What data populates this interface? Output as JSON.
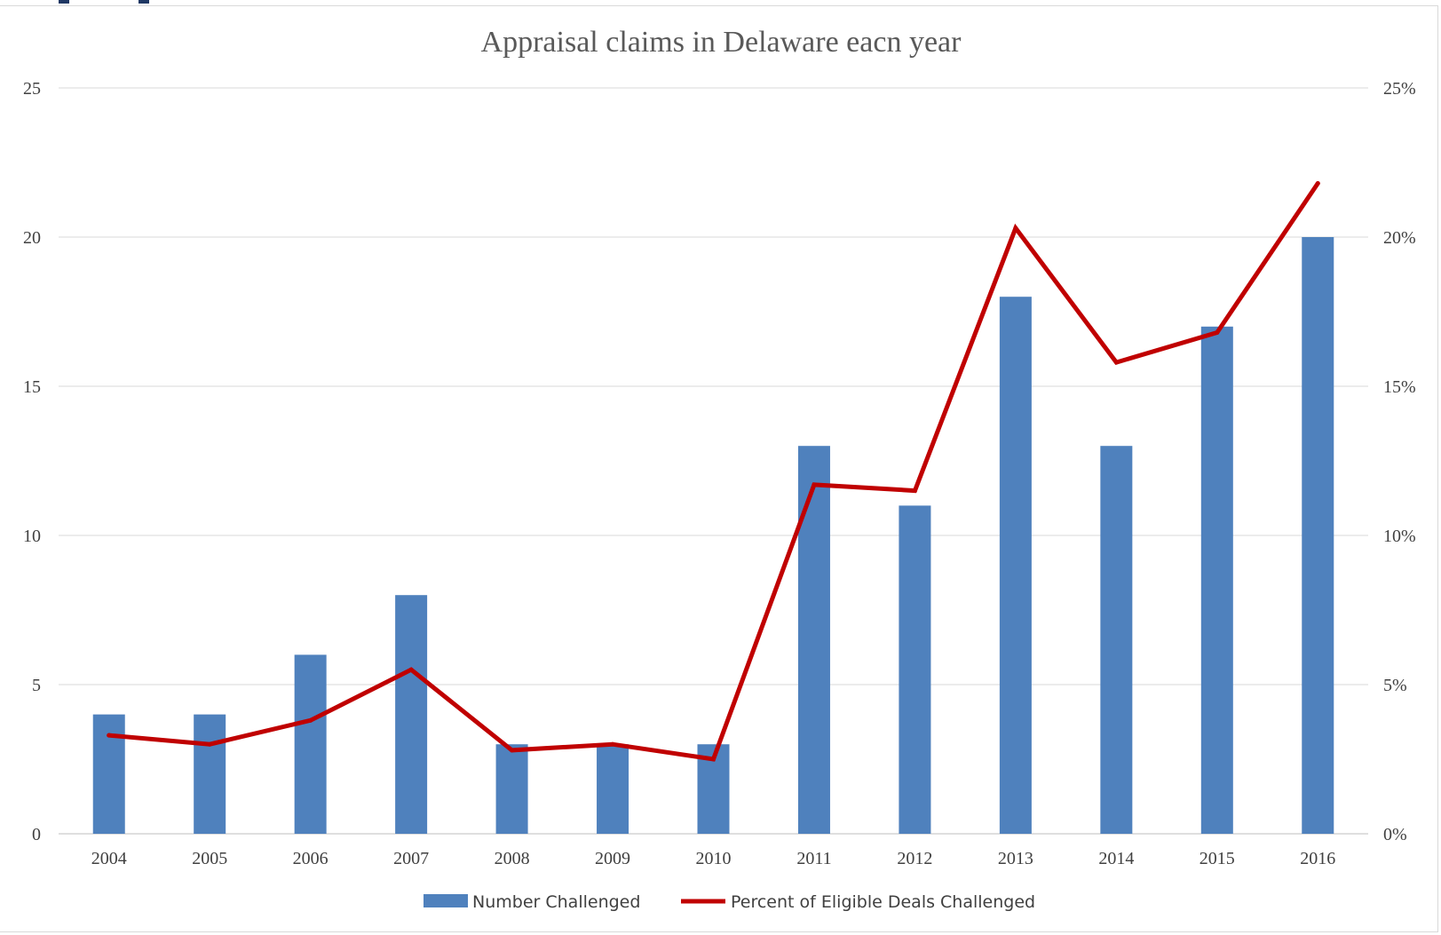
{
  "chart_data": {
    "type": "bar",
    "title": "Appraisal claims in Delaware eacn year",
    "xlabel": "",
    "ylabel": "",
    "categories": [
      "2004",
      "2005",
      "2006",
      "2007",
      "2008",
      "2009",
      "2010",
      "2011",
      "2012",
      "2013",
      "2014",
      "2015",
      "2016"
    ],
    "ylim": [
      0,
      25
    ],
    "y_ticks": [
      "0",
      "5",
      "10",
      "15",
      "20",
      "25"
    ],
    "y2lim": [
      0,
      25
    ],
    "y2_ticks": [
      "0%",
      "5%",
      "10%",
      "15%",
      "20%",
      "25%"
    ],
    "grid": true,
    "legend_position": "bottom",
    "series": [
      {
        "name": "Number Challenged",
        "type": "bar",
        "axis": "left",
        "color": "#4f81bd",
        "values": [
          4,
          4,
          6,
          8,
          3,
          3,
          3,
          13,
          11,
          18,
          13,
          17,
          20
        ]
      },
      {
        "name": "Percent of Eligible Deals Challenged",
        "type": "line",
        "axis": "right",
        "unit": "%",
        "color": "#c00000",
        "values": [
          3.3,
          3.0,
          3.8,
          5.5,
          2.8,
          3.0,
          2.5,
          11.7,
          11.5,
          20.3,
          15.8,
          16.8,
          21.8
        ]
      }
    ]
  }
}
